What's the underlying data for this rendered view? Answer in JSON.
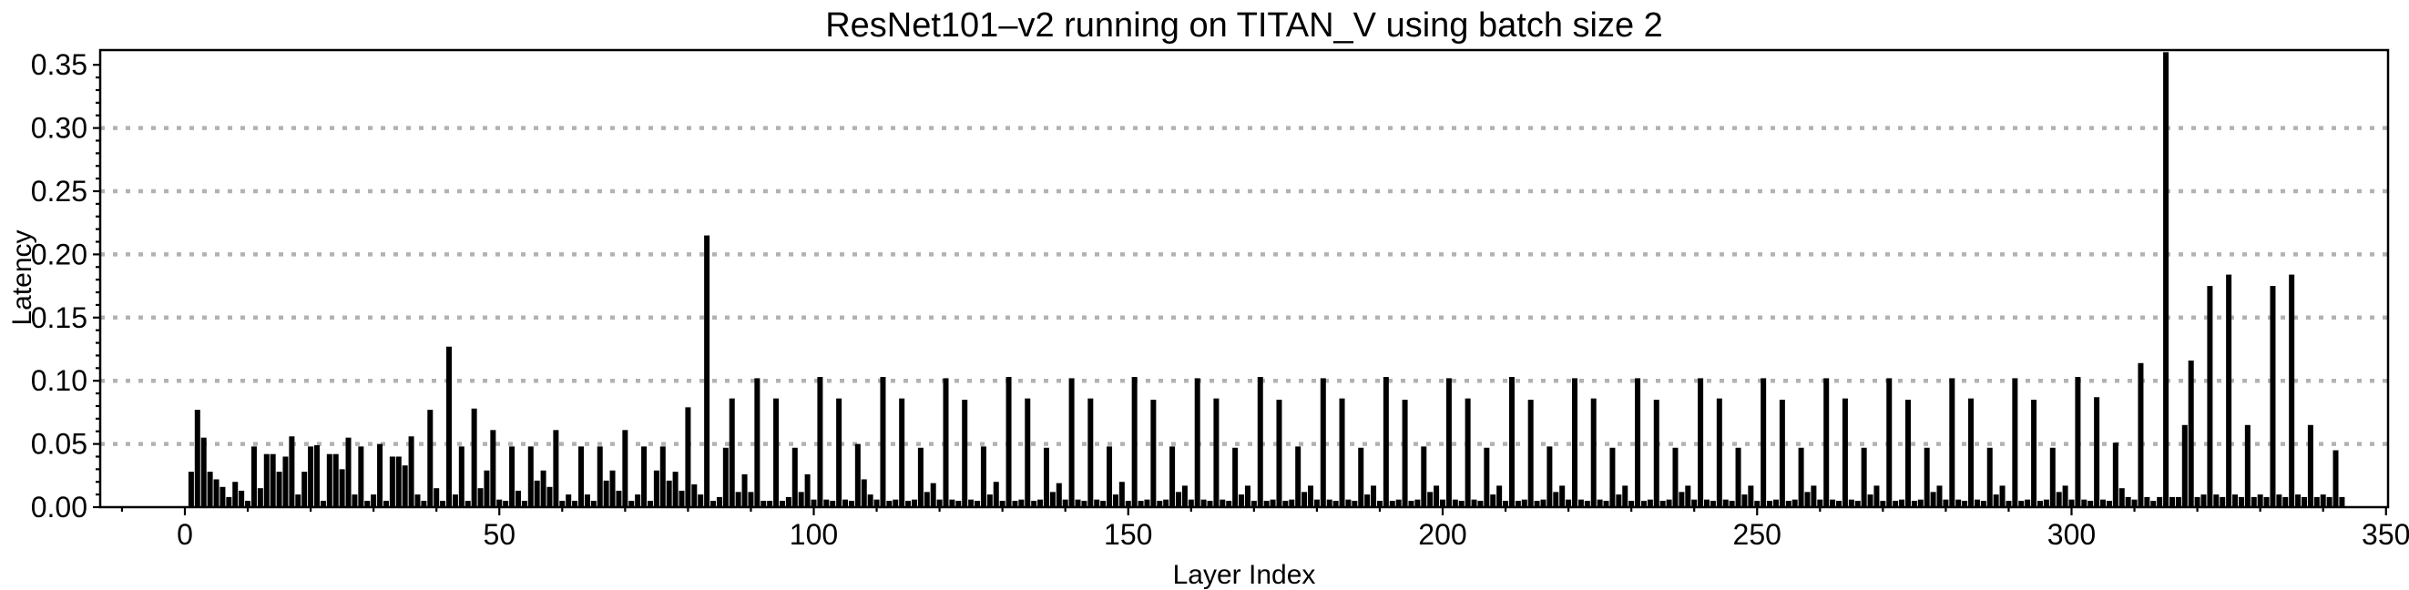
{
  "chart_data": {
    "type": "bar",
    "title": "ResNet101–v2 running on TITAN_V using batch size 2",
    "xlabel": "Layer Index",
    "ylabel": "Latency",
    "x_ticks": [
      0,
      50,
      100,
      150,
      200,
      250,
      300,
      350
    ],
    "y_tick_values": [
      0.0,
      0.05,
      0.1,
      0.15,
      0.2,
      0.25,
      0.3,
      0.35
    ],
    "y_tick_labels": [
      "0.00",
      "0.05",
      "0.10",
      "0.15",
      "0.20",
      "0.25",
      "0.30",
      "0.35"
    ],
    "xlim": [
      -13.5,
      350.4
    ],
    "ylim": [
      0,
      0.3627
    ],
    "gridlines": [
      0.05,
      0.1,
      0.15,
      0.2,
      0.25,
      0.3
    ],
    "grid_style": "dotted-horizontal",
    "legend": "none",
    "bar_color": "#000000",
    "gridline_color": "#b2b2b2",
    "background_color": "#ffffff",
    "x_start_layer": 1,
    "values": [
      0.028,
      0.077,
      0.055,
      0.028,
      0.022,
      0.016,
      0.008,
      0.02,
      0.013,
      0.005,
      0.048,
      0.015,
      0.042,
      0.042,
      0.028,
      0.04,
      0.056,
      0.01,
      0.028,
      0.048,
      0.049,
      0.005,
      0.042,
      0.042,
      0.03,
      0.055,
      0.01,
      0.048,
      0.005,
      0.01,
      0.05,
      0.005,
      0.04,
      0.04,
      0.033,
      0.056,
      0.01,
      0.005,
      0.077,
      0.015,
      0.005,
      0.127,
      0.01,
      0.048,
      0.005,
      0.078,
      0.015,
      0.029,
      0.061,
      0.006,
      0.005,
      0.048,
      0.013,
      0.005,
      0.048,
      0.021,
      0.029,
      0.016,
      0.061,
      0.005,
      0.01,
      0.005,
      0.048,
      0.01,
      0.005,
      0.048,
      0.021,
      0.029,
      0.013,
      0.061,
      0.005,
      0.01,
      0.048,
      0.005,
      0.029,
      0.048,
      0.021,
      0.028,
      0.013,
      0.079,
      0.018,
      0.01,
      0.215,
      0.005,
      0.008,
      0.047,
      0.086,
      0.012,
      0.026,
      0.012,
      0.102,
      0.005,
      0.005,
      0.086,
      0.005,
      0.008,
      0.047,
      0.012,
      0.026,
      0.006,
      0.103,
      0.006,
      0.005,
      0.086,
      0.006,
      0.005,
      0.05,
      0.022,
      0.01,
      0.006,
      0.103,
      0.005,
      0.006,
      0.086,
      0.005,
      0.006,
      0.047,
      0.012,
      0.019,
      0.006,
      0.102,
      0.006,
      0.005,
      0.085,
      0.006,
      0.005,
      0.048,
      0.01,
      0.02,
      0.005,
      0.103,
      0.005,
      0.006,
      0.086,
      0.005,
      0.006,
      0.047,
      0.012,
      0.019,
      0.006,
      0.102,
      0.006,
      0.005,
      0.086,
      0.006,
      0.005,
      0.048,
      0.01,
      0.02,
      0.005,
      0.103,
      0.005,
      0.006,
      0.085,
      0.005,
      0.006,
      0.048,
      0.012,
      0.017,
      0.006,
      0.102,
      0.006,
      0.005,
      0.086,
      0.006,
      0.005,
      0.047,
      0.01,
      0.017,
      0.005,
      0.103,
      0.005,
      0.006,
      0.085,
      0.005,
      0.006,
      0.048,
      0.012,
      0.017,
      0.006,
      0.102,
      0.006,
      0.005,
      0.086,
      0.006,
      0.005,
      0.047,
      0.01,
      0.017,
      0.005,
      0.103,
      0.005,
      0.006,
      0.085,
      0.005,
      0.006,
      0.048,
      0.012,
      0.017,
      0.006,
      0.102,
      0.006,
      0.005,
      0.086,
      0.006,
      0.005,
      0.047,
      0.01,
      0.017,
      0.005,
      0.103,
      0.005,
      0.006,
      0.085,
      0.005,
      0.006,
      0.048,
      0.012,
      0.017,
      0.006,
      0.102,
      0.006,
      0.005,
      0.086,
      0.006,
      0.005,
      0.047,
      0.01,
      0.017,
      0.005,
      0.102,
      0.005,
      0.006,
      0.085,
      0.005,
      0.006,
      0.047,
      0.012,
      0.017,
      0.006,
      0.102,
      0.006,
      0.005,
      0.086,
      0.006,
      0.005,
      0.047,
      0.01,
      0.017,
      0.005,
      0.102,
      0.005,
      0.006,
      0.085,
      0.005,
      0.006,
      0.047,
      0.012,
      0.017,
      0.006,
      0.102,
      0.006,
      0.005,
      0.086,
      0.006,
      0.005,
      0.047,
      0.01,
      0.017,
      0.005,
      0.102,
      0.005,
      0.006,
      0.085,
      0.005,
      0.006,
      0.047,
      0.012,
      0.017,
      0.006,
      0.102,
      0.006,
      0.005,
      0.086,
      0.006,
      0.005,
      0.047,
      0.01,
      0.017,
      0.005,
      0.102,
      0.005,
      0.006,
      0.085,
      0.005,
      0.006,
      0.047,
      0.012,
      0.017,
      0.006,
      0.103,
      0.006,
      0.005,
      0.087,
      0.006,
      0.005,
      0.051,
      0.015,
      0.008,
      0.006,
      0.114,
      0.008,
      0.005,
      0.008,
      0.36,
      0.008,
      0.008,
      0.065,
      0.116,
      0.008,
      0.01,
      0.175,
      0.01,
      0.008,
      0.184,
      0.01,
      0.008,
      0.065,
      0.008,
      0.01,
      0.008,
      0.175,
      0.01,
      0.008,
      0.184,
      0.01,
      0.008,
      0.065,
      0.008,
      0.01,
      0.008,
      0.045,
      0.008
    ]
  }
}
